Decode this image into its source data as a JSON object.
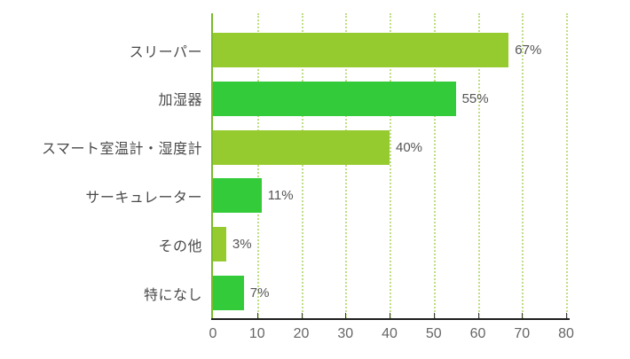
{
  "chart_data": {
    "type": "bar",
    "orientation": "horizontal",
    "title": "",
    "xlabel": "",
    "ylabel": "",
    "categories": [
      "スリーパー",
      "加湿器",
      "スマート室温計・湿度計",
      "サーキュレーター",
      "その他",
      "特になし"
    ],
    "values": [
      67,
      55,
      40,
      11,
      3,
      7
    ],
    "value_labels": [
      "67%",
      "55%",
      "40%",
      "11%",
      "3%",
      "7%"
    ],
    "xlim": [
      0,
      80
    ],
    "tick_step": 10,
    "tick_labels": [
      "0",
      "10",
      "20",
      "30",
      "40",
      "50",
      "60",
      "70",
      "80"
    ],
    "bar_colors": [
      "#96CB30",
      "#33CB3A",
      "#96CB30",
      "#33CB3A",
      "#96CB30",
      "#33CB3A"
    ],
    "grid": "dotted-vertical",
    "grid_color": "#BFDE86",
    "y_axis_color": "#79BC29",
    "x_axis_color": "#1E1E1E",
    "label_color": "#4A4A4A",
    "value_color": "#555555",
    "tick_label_color": "#666666",
    "background": "#FFFFFF",
    "legend": "none"
  }
}
